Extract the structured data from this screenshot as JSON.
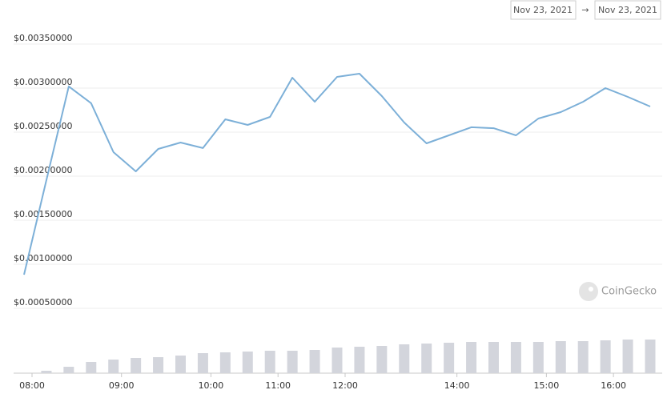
{
  "chart_data": {
    "type": "line",
    "date_from": "Nov 23, 2021",
    "arrow": "→",
    "date_to": "Nov 23, 2021",
    "watermark": "CoinGecko",
    "categories": [
      "08:00",
      null,
      null,
      null,
      "09:00",
      null,
      null,
      null,
      "10:00",
      null,
      null,
      "11:00",
      null,
      null,
      "12:00",
      null,
      null,
      null,
      null,
      "14:00",
      null,
      null,
      null,
      "15:00",
      null,
      null,
      "16:00",
      null,
      null
    ],
    "values": [
      0.000882,
      0.001954,
      0.003019,
      0.002828,
      0.002273,
      0.002055,
      0.002309,
      0.002382,
      0.002319,
      0.002645,
      0.002582,
      0.002673,
      0.003118,
      0.002845,
      0.003127,
      0.003164,
      0.002909,
      0.002609,
      0.002373,
      0.002464,
      0.002555,
      0.002545,
      0.002464,
      0.002655,
      0.002727,
      0.002845,
      0.003,
      0.0029,
      0.002791
    ],
    "color": "#7db0d8",
    "volume": [
      null,
      3,
      8,
      14,
      17,
      19,
      20,
      22,
      25,
      26,
      27,
      28,
      28,
      29,
      32,
      33,
      34,
      36,
      37,
      38,
      39,
      39,
      39,
      39,
      40,
      40,
      41,
      42,
      42
    ],
    "volume_color": "#d3d5dc",
    "ylim": [
      0,
      0.0038
    ],
    "yticks": [
      {
        "value": 0.0005,
        "label": "$0.00050000"
      },
      {
        "value": 0.001,
        "label": "$0.00100000"
      },
      {
        "value": 0.0015,
        "label": "$0.00150000"
      },
      {
        "value": 0.002,
        "label": "$0.00200000"
      },
      {
        "value": 0.0025,
        "label": "$0.00250000"
      },
      {
        "value": 0.003,
        "label": "$0.00300000"
      },
      {
        "value": 0.0035,
        "label": "$0.00350000"
      }
    ],
    "grid": true
  }
}
